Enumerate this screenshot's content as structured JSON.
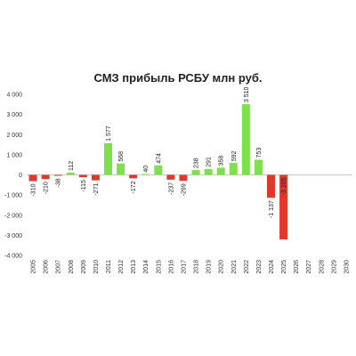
{
  "chart_data": {
    "type": "bar",
    "title": "СМЗ прибыль РСБУ млн руб.",
    "xlabel": "",
    "ylabel": "",
    "ylim": [
      -4000,
      4000
    ],
    "yticks": [
      -4000,
      -3000,
      -2000,
      -1000,
      0,
      1000,
      2000,
      3000,
      4000
    ],
    "ytick_labels": [
      "-4 000",
      "-3 000",
      "-2 000",
      "-1 000",
      "0",
      "1 000",
      "2 000",
      "3 000",
      "4 000"
    ],
    "grid": false,
    "legend": "none",
    "categories": [
      "2005",
      "2006",
      "2007",
      "2008",
      "2009",
      "2010",
      "2011",
      "2012",
      "2013",
      "2014",
      "2015",
      "2016",
      "2017",
      "2018",
      "2019",
      "2020",
      "2021",
      "2022",
      "2023",
      "2024",
      "2025",
      "2026",
      "2027",
      "2028",
      "2029",
      "2030"
    ],
    "values": [
      -310,
      -210,
      -38,
      112,
      -115,
      -271,
      1577,
      568,
      -172,
      40,
      474,
      -237,
      -299,
      238,
      291,
      358,
      592,
      3510,
      753,
      -1137,
      -3205,
      null,
      null,
      null,
      null,
      null
    ],
    "data_labels": [
      "-310",
      "-210",
      "-38",
      "112",
      "-115",
      "-271",
      "1 577",
      "568",
      "-172",
      "40",
      "474",
      "-237",
      "-299",
      "238",
      "291",
      "358",
      "592",
      "3 510",
      "753",
      "-1 137",
      "-3 205",
      "",
      "",
      "",
      "",
      ""
    ],
    "colors": {
      "positive": "#7ee04c",
      "negative": "#e0392b",
      "axis": "#c8c8c8"
    }
  }
}
